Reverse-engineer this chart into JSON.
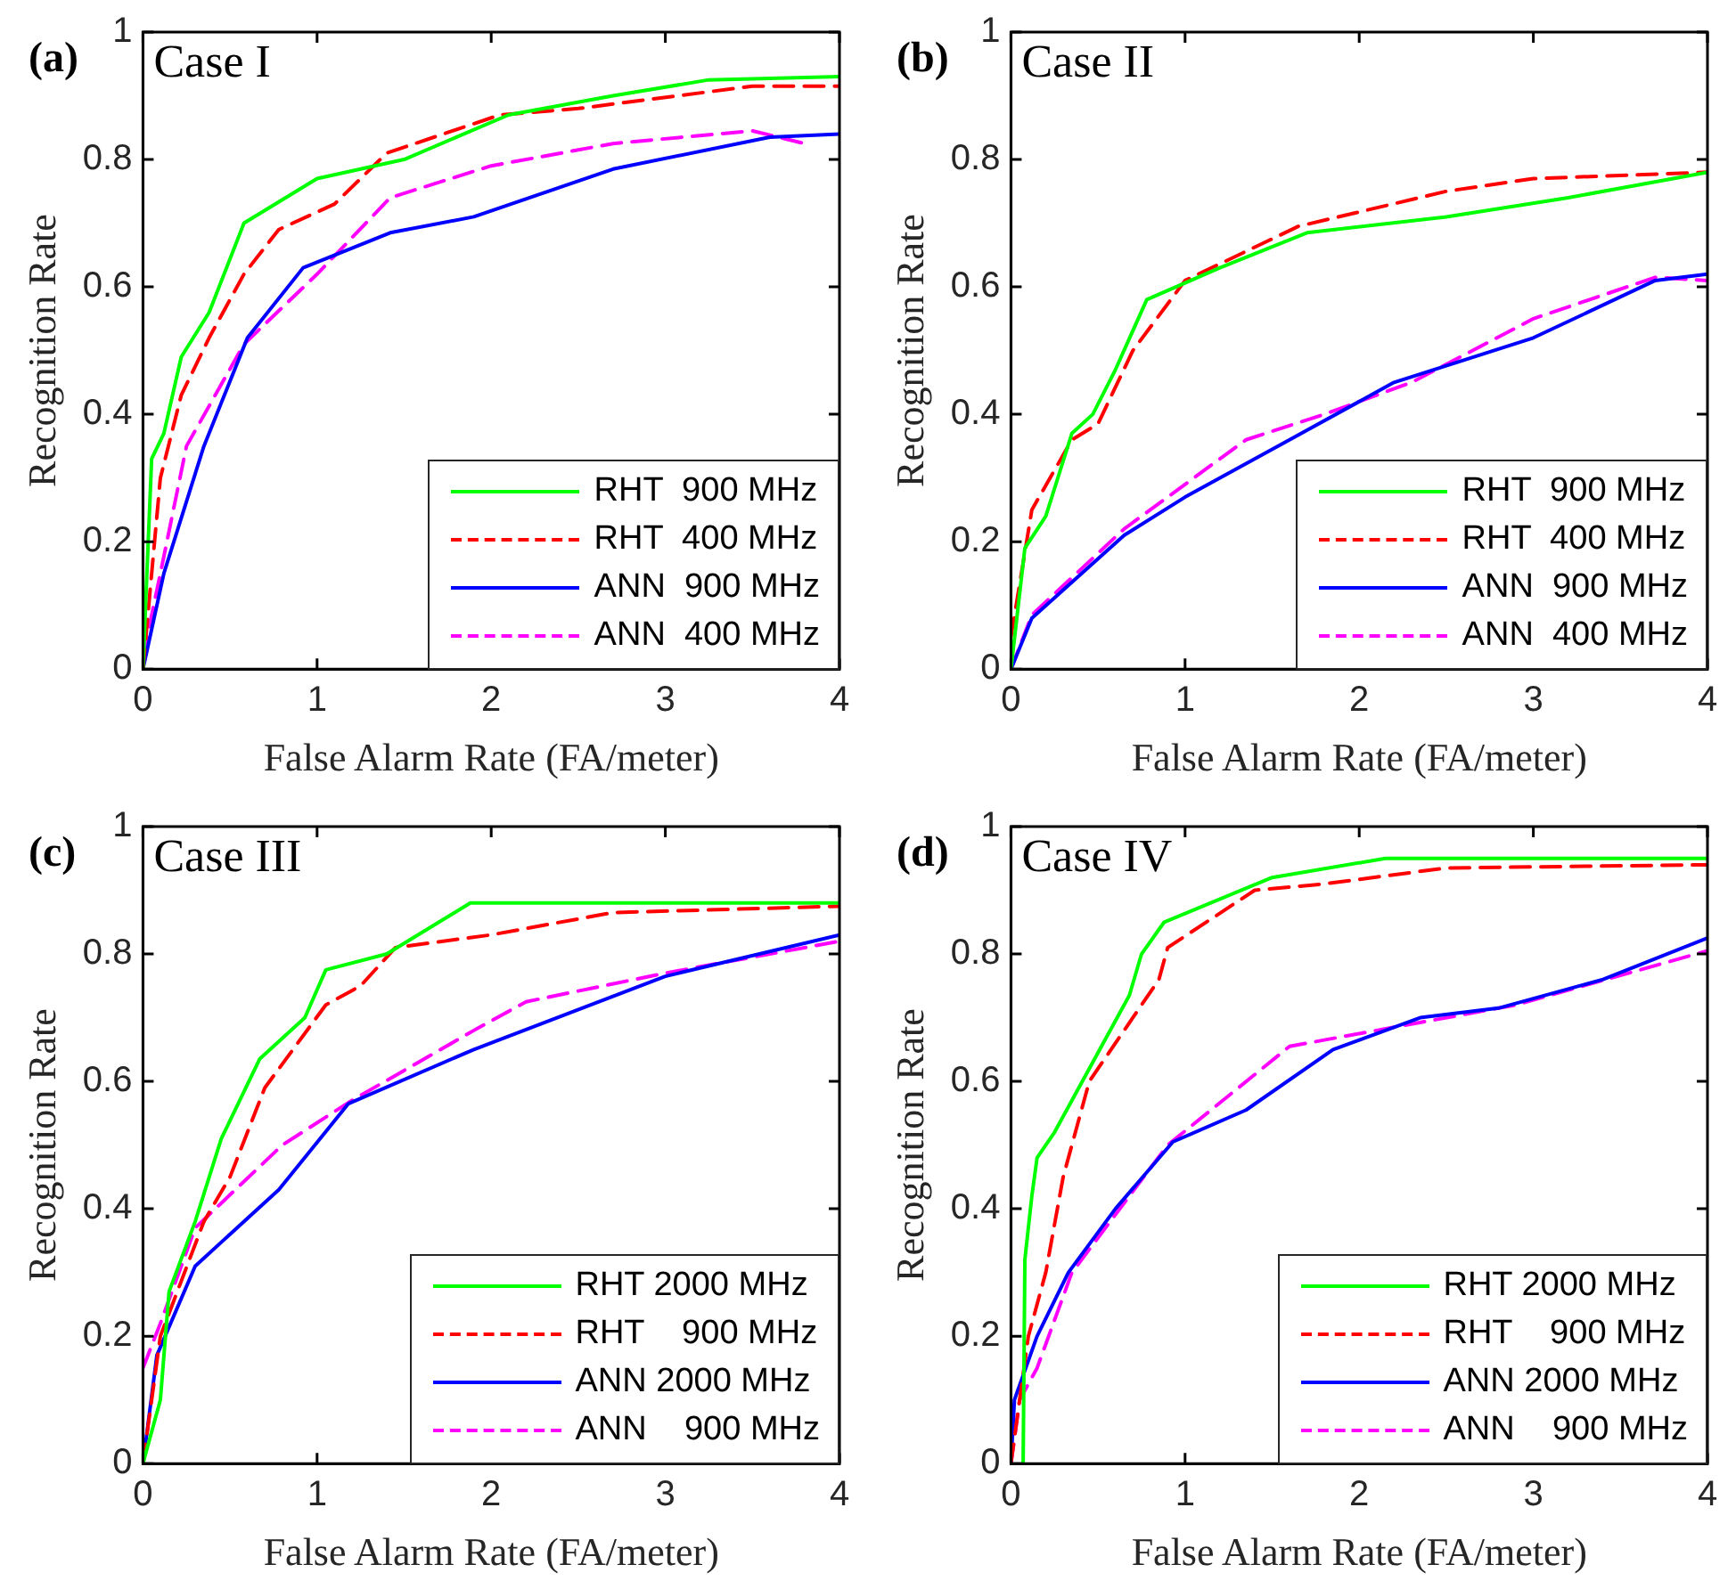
{
  "chart_data": [
    {
      "type": "line",
      "title": "(a)",
      "annotations": [
        "Case I"
      ],
      "xlabel": "False Alarm Rate (FA/meter)",
      "ylabel": "Recognition Rate",
      "xlim": [
        0,
        4
      ],
      "xticks": [
        0,
        1,
        2,
        3,
        4
      ],
      "ylim": [
        0,
        1
      ],
      "yticks": [
        0,
        0.2,
        0.4,
        0.6,
        0.8,
        1
      ],
      "legend": "bottom right",
      "marker": "none",
      "series": [
        {
          "name": "RHT  900 MHz",
          "color": "#00ff00",
          "line_style": "solid",
          "x": [
            0,
            0.05,
            0.12,
            0.22,
            0.38,
            0.58,
            1.0,
            1.5,
            2.1,
            2.7,
            3.25,
            4
          ],
          "values": [
            0,
            0.33,
            0.37,
            0.49,
            0.56,
            0.7,
            0.77,
            0.8,
            0.87,
            0.9,
            0.925,
            0.93
          ]
        },
        {
          "name": "RHT  400 MHz",
          "color": "#ff0000",
          "line_style": "dashed",
          "x": [
            0,
            0.1,
            0.22,
            0.38,
            0.58,
            0.78,
            1.1,
            1.4,
            2.05,
            2.5,
            3.5,
            4
          ],
          "values": [
            0,
            0.3,
            0.43,
            0.52,
            0.62,
            0.69,
            0.73,
            0.81,
            0.87,
            0.88,
            0.915,
            0.915
          ]
        },
        {
          "name": "ANN  900 MHz",
          "color": "#0000ff",
          "line_style": "solid",
          "x": [
            0,
            0.12,
            0.35,
            0.6,
            0.92,
            1.42,
            1.9,
            2.7,
            3.6,
            4
          ],
          "values": [
            0,
            0.15,
            0.35,
            0.52,
            0.63,
            0.685,
            0.71,
            0.785,
            0.835,
            0.84
          ]
        },
        {
          "name": "ANN  400 MHz",
          "color": "#ff00ff",
          "line_style": "dashed",
          "x": [
            0,
            0.1,
            0.25,
            0.58,
            1.0,
            1.42,
            2.0,
            2.7,
            3.5,
            3.8
          ],
          "values": [
            0.02,
            0.15,
            0.35,
            0.51,
            0.62,
            0.74,
            0.79,
            0.825,
            0.845,
            0.825
          ]
        }
      ]
    },
    {
      "type": "line",
      "title": "(b)",
      "annotations": [
        "Case II"
      ],
      "xlabel": "False Alarm Rate (FA/meter)",
      "ylabel": "Recognition Rate",
      "xlim": [
        0,
        4
      ],
      "xticks": [
        0,
        1,
        2,
        3,
        4
      ],
      "ylim": [
        0,
        1
      ],
      "yticks": [
        0,
        0.2,
        0.4,
        0.6,
        0.8,
        1
      ],
      "legend": "bottom right",
      "marker": "none",
      "series": [
        {
          "name": "RHT  900 MHz",
          "color": "#00ff00",
          "line_style": "solid",
          "x": [
            0,
            0.08,
            0.2,
            0.35,
            0.47,
            0.6,
            0.78,
            1.2,
            1.7,
            2.5,
            3.2,
            4
          ],
          "values": [
            0,
            0.19,
            0.24,
            0.37,
            0.4,
            0.47,
            0.58,
            0.63,
            0.685,
            0.71,
            0.74,
            0.78
          ]
        },
        {
          "name": "RHT  400 MHz",
          "color": "#ff0000",
          "line_style": "dashed",
          "x": [
            0,
            0.12,
            0.35,
            0.5,
            0.7,
            1.0,
            1.65,
            2.5,
            3.0,
            4
          ],
          "values": [
            0.05,
            0.25,
            0.36,
            0.385,
            0.5,
            0.61,
            0.695,
            0.75,
            0.77,
            0.78
          ]
        },
        {
          "name": "ANN  900 MHz",
          "color": "#0000ff",
          "line_style": "solid",
          "x": [
            0,
            0.12,
            0.65,
            1.0,
            1.6,
            2.2,
            3.0,
            3.7,
            4
          ],
          "values": [
            0,
            0.08,
            0.21,
            0.27,
            0.36,
            0.45,
            0.52,
            0.61,
            0.62
          ]
        },
        {
          "name": "ANN  400 MHz",
          "color": "#ff00ff",
          "line_style": "dashed",
          "x": [
            0,
            0.12,
            0.65,
            1.35,
            1.8,
            2.3,
            3.0,
            3.7,
            4
          ],
          "values": [
            0,
            0.085,
            0.22,
            0.36,
            0.4,
            0.45,
            0.55,
            0.615,
            0.61
          ]
        }
      ]
    },
    {
      "type": "line",
      "title": "(c)",
      "annotations": [
        "Case III"
      ],
      "xlabel": "False Alarm Rate (FA/meter)",
      "ylabel": "Recognition Rate",
      "xlim": [
        0,
        4
      ],
      "xticks": [
        0,
        1,
        2,
        3,
        4
      ],
      "ylim": [
        0,
        1
      ],
      "yticks": [
        0,
        0.2,
        0.4,
        0.6,
        0.8,
        1
      ],
      "legend": "bottom right",
      "marker": "none",
      "series": [
        {
          "name": "RHT 2000 MHz",
          "color": "#00ff00",
          "line_style": "solid",
          "x": [
            0,
            0.1,
            0.15,
            0.3,
            0.45,
            0.67,
            0.93,
            1.05,
            1.4,
            1.88,
            4
          ],
          "values": [
            0,
            0.1,
            0.27,
            0.38,
            0.51,
            0.635,
            0.7,
            0.775,
            0.8,
            0.88,
            0.88
          ]
        },
        {
          "name": "RHT    900 MHz",
          "color": "#ff0000",
          "line_style": "dashed",
          "x": [
            0,
            0.1,
            0.35,
            0.5,
            0.7,
            1.05,
            1.25,
            1.45,
            2.0,
            2.7,
            4
          ],
          "values": [
            0,
            0.2,
            0.38,
            0.45,
            0.59,
            0.72,
            0.75,
            0.81,
            0.83,
            0.865,
            0.875
          ]
        },
        {
          "name": "ANN 2000 MHz",
          "color": "#0000ff",
          "line_style": "solid",
          "x": [
            0,
            0.08,
            0.3,
            0.78,
            1.18,
            1.9,
            3.0,
            4
          ],
          "values": [
            0,
            0.17,
            0.31,
            0.43,
            0.565,
            0.65,
            0.765,
            0.83
          ]
        },
        {
          "name": "ANN    900 MHz",
          "color": "#ff00ff",
          "line_style": "dashed",
          "x": [
            0,
            0.1,
            0.3,
            0.8,
            1.2,
            1.9,
            2.2,
            3.0,
            4
          ],
          "values": [
            0.15,
            0.22,
            0.37,
            0.5,
            0.57,
            0.68,
            0.725,
            0.77,
            0.82
          ]
        }
      ]
    },
    {
      "type": "line",
      "title": "(d)",
      "annotations": [
        "Case IV"
      ],
      "xlabel": "False Alarm Rate (FA/meter)",
      "ylabel": "Recognition Rate",
      "xlim": [
        0,
        4
      ],
      "xticks": [
        0,
        1,
        2,
        3,
        4
      ],
      "ylim": [
        0,
        1
      ],
      "yticks": [
        0,
        0.2,
        0.4,
        0.6,
        0.8,
        1
      ],
      "legend": "bottom right",
      "marker": "none",
      "series": [
        {
          "name": "RHT 2000 MHz",
          "color": "#00ff00",
          "line_style": "solid",
          "x": [
            0.07,
            0.08,
            0.12,
            0.15,
            0.25,
            0.45,
            0.68,
            0.75,
            0.88,
            1.5,
            2.15,
            4
          ],
          "values": [
            0,
            0.32,
            0.42,
            0.48,
            0.52,
            0.62,
            0.735,
            0.8,
            0.85,
            0.92,
            0.95,
            0.95
          ]
        },
        {
          "name": "RHT    900 MHz",
          "color": "#ff0000",
          "line_style": "dashed",
          "x": [
            0,
            0.1,
            0.2,
            0.3,
            0.45,
            0.6,
            0.85,
            0.9,
            1.4,
            1.8,
            2.5,
            4
          ],
          "values": [
            0,
            0.2,
            0.3,
            0.45,
            0.6,
            0.66,
            0.76,
            0.81,
            0.9,
            0.91,
            0.935,
            0.94
          ]
        },
        {
          "name": "ANN 2000 MHz",
          "color": "#0000ff",
          "line_style": "solid",
          "x": [
            0,
            0.02,
            0.15,
            0.33,
            0.6,
            0.93,
            1.35,
            1.85,
            2.35,
            2.8,
            3.4,
            4
          ],
          "values": [
            0,
            0.1,
            0.2,
            0.3,
            0.4,
            0.505,
            0.555,
            0.65,
            0.7,
            0.715,
            0.76,
            0.825
          ]
        },
        {
          "name": "ANN    900 MHz",
          "color": "#ff00ff",
          "line_style": "dashed",
          "x": [
            0,
            0.05,
            0.15,
            0.35,
            0.9,
            1.6,
            2.2,
            2.9,
            4
          ],
          "values": [
            0,
            0.1,
            0.15,
            0.3,
            0.5,
            0.655,
            0.685,
            0.72,
            0.805
          ]
        }
      ]
    }
  ]
}
